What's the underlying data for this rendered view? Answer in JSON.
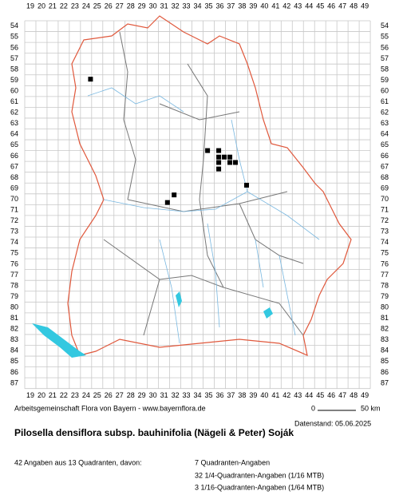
{
  "grid": {
    "columns": [
      19,
      20,
      21,
      22,
      23,
      24,
      25,
      26,
      27,
      28,
      29,
      30,
      31,
      32,
      33,
      34,
      35,
      36,
      37,
      38,
      39,
      40,
      41,
      42,
      43,
      44,
      45,
      46,
      47,
      48,
      49
    ],
    "rows": [
      54,
      55,
      56,
      57,
      58,
      59,
      60,
      61,
      62,
      63,
      64,
      65,
      66,
      67,
      68,
      69,
      70,
      71,
      72,
      73,
      74,
      75,
      76,
      77,
      78,
      79,
      80,
      81,
      82,
      83,
      84,
      85,
      86,
      87
    ]
  },
  "occurrences": [
    {
      "x": 24.4,
      "y": 58.9
    },
    {
      "x": 34.9,
      "y": 65.5
    },
    {
      "x": 35.9,
      "y": 65.5
    },
    {
      "x": 35.9,
      "y": 66.1
    },
    {
      "x": 36.4,
      "y": 66.1
    },
    {
      "x": 36.9,
      "y": 66.1
    },
    {
      "x": 35.9,
      "y": 66.6
    },
    {
      "x": 36.9,
      "y": 66.6
    },
    {
      "x": 37.4,
      "y": 66.6
    },
    {
      "x": 35.9,
      "y": 67.2
    },
    {
      "x": 38.4,
      "y": 68.7
    },
    {
      "x": 31.9,
      "y": 69.6
    },
    {
      "x": 31.3,
      "y": 70.3
    }
  ],
  "footer": {
    "credit": "Arbeitsgemeinschaft Flora von Bayern - www.bayernflora.de",
    "scale_start": "0",
    "scale_end": "50 km",
    "date": "Datenstand: 05.06.2025",
    "title": "Pilosella densiflora subsp. bauhinifolia (Nägeli & Peter) Soják",
    "summary": "42 Angaben aus 13 Quadranten, davon:",
    "details": [
      "7 Quadranten-Angaben",
      "32 1/4-Quadranten-Angaben (1/16 MTB)",
      "3 1/16-Quadranten-Angaben (1/64 MTB)"
    ]
  }
}
